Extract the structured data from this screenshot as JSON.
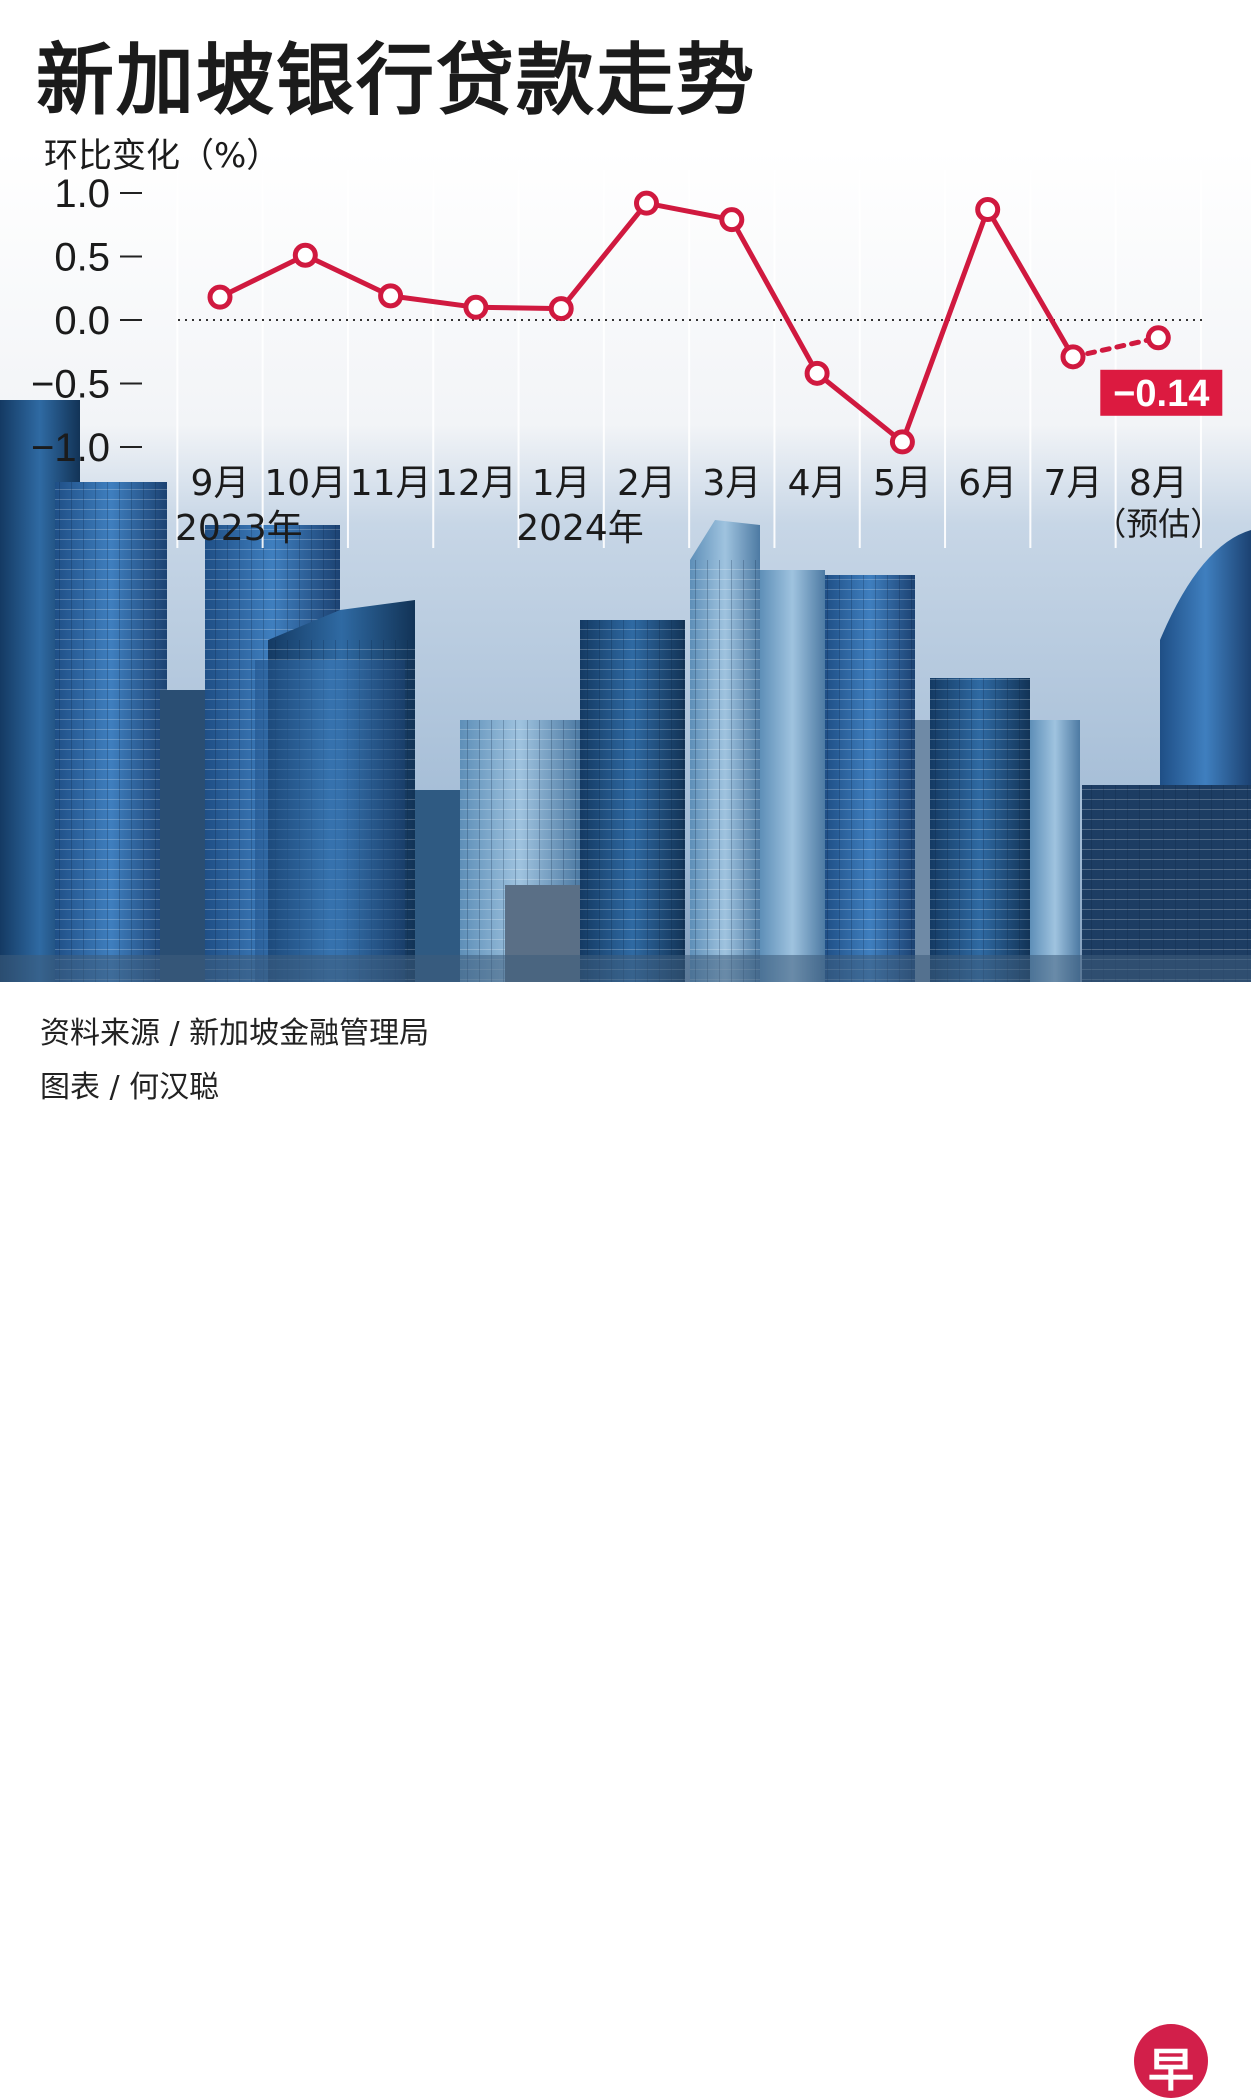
{
  "title": "新加坡银行贷款走势",
  "ylabel": "环比变化（%）",
  "source": "资料来源 / 新加坡金融管理局",
  "credit": "图表 / 何汉聪",
  "logo_text": "早",
  "colors": {
    "line": "#d0193f",
    "label_bg": "#dc1a40",
    "accent": "#d21f4a"
  },
  "chart_data": {
    "type": "line",
    "categories": [
      "9月",
      "10月",
      "11月",
      "12月",
      "1月",
      "2月",
      "3月",
      "4月",
      "5月",
      "6月",
      "7月",
      "8月"
    ],
    "year_labels": [
      {
        "index": 0,
        "text": "2023年"
      },
      {
        "index": 4,
        "text": "2024年"
      }
    ],
    "estimate_label": "（预估）",
    "values": [
      0.18,
      0.51,
      0.19,
      0.1,
      0.09,
      0.92,
      0.79,
      -0.42,
      -0.96,
      0.87,
      -0.29,
      -0.14
    ],
    "estimate_from_index": 10,
    "highlight": {
      "index": 11,
      "text": "−0.14"
    },
    "yticks": [
      "1.0",
      "0.5",
      "0.0",
      "−0.5",
      "−1.0"
    ],
    "ytick_values": [
      1.0,
      0.5,
      0.0,
      -0.5,
      -1.0
    ],
    "ylim": [
      -1.0,
      1.0
    ],
    "grid": "vertical separators, dotted zero line"
  }
}
